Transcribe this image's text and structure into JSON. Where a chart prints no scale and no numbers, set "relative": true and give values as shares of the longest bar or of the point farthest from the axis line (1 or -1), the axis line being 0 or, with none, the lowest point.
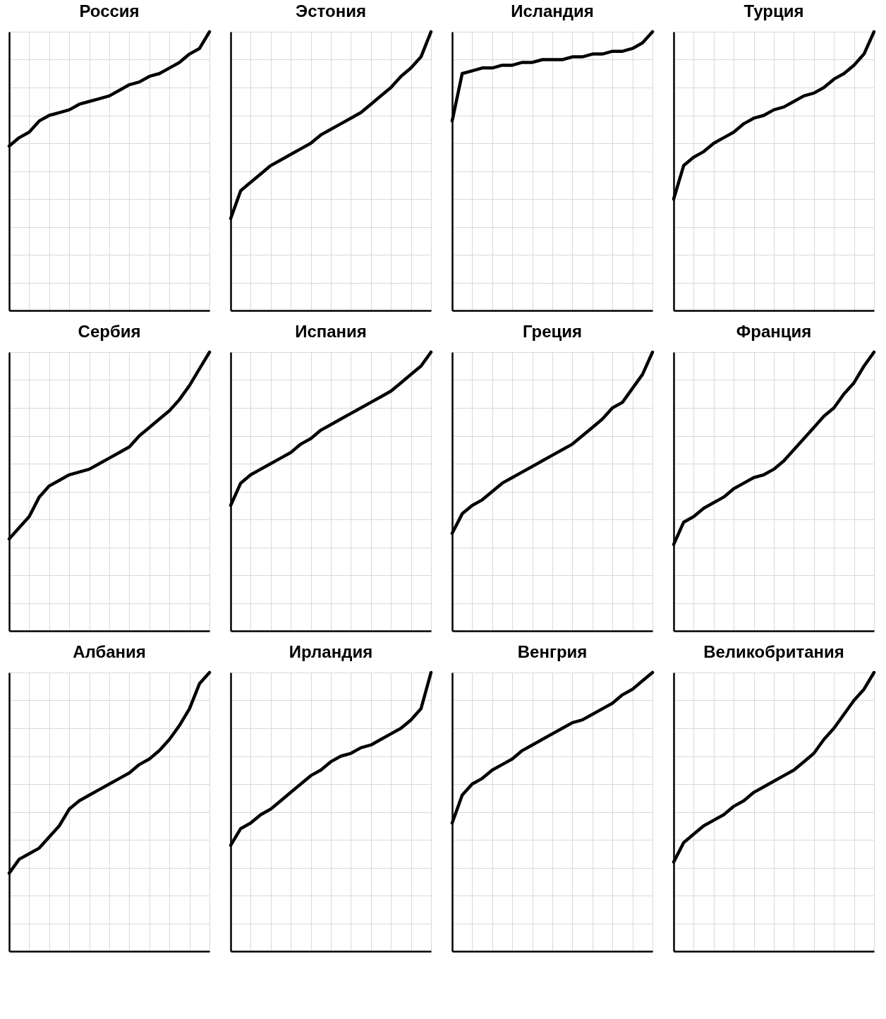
{
  "chart_data": [
    {
      "type": "line",
      "title": "Россия",
      "categories": [
        null,
        null,
        null,
        null,
        null,
        null,
        null,
        null,
        null,
        null,
        null,
        null,
        null,
        null,
        null,
        null,
        null,
        null,
        null,
        null,
        null
      ],
      "values": [
        0.59,
        0.62,
        0.64,
        0.68,
        0.7,
        0.71,
        0.72,
        0.74,
        0.75,
        0.76,
        0.77,
        0.79,
        0.81,
        0.82,
        0.84,
        0.85,
        0.87,
        0.89,
        0.92,
        0.94,
        1
      ],
      "color": "#000000",
      "relative": true,
      "grid": true,
      "tick_labels": false
    },
    {
      "type": "line",
      "title": "Эстония",
      "categories": [
        null,
        null,
        null,
        null,
        null,
        null,
        null,
        null,
        null,
        null,
        null,
        null,
        null,
        null,
        null,
        null,
        null,
        null,
        null,
        null,
        null
      ],
      "values": [
        0.33,
        0.43,
        0.46,
        0.49,
        0.52,
        0.54,
        0.56,
        0.58,
        0.6,
        0.63,
        0.65,
        0.67,
        0.69,
        0.71,
        0.74,
        0.77,
        0.8,
        0.84,
        0.87,
        0.91,
        1
      ],
      "color": "#000000",
      "relative": true,
      "grid": true,
      "tick_labels": false
    },
    {
      "type": "line",
      "title": "Исландия",
      "categories": [
        null,
        null,
        null,
        null,
        null,
        null,
        null,
        null,
        null,
        null,
        null,
        null,
        null,
        null,
        null,
        null,
        null,
        null,
        null,
        null,
        null
      ],
      "values": [
        0.68,
        0.85,
        0.86,
        0.87,
        0.87,
        0.88,
        0.88,
        0.89,
        0.89,
        0.9,
        0.9,
        0.9,
        0.91,
        0.91,
        0.92,
        0.92,
        0.93,
        0.93,
        0.94,
        0.96,
        1
      ],
      "color": "#000000",
      "relative": true,
      "grid": true,
      "tick_labels": false
    },
    {
      "type": "line",
      "title": "Турция",
      "categories": [
        null,
        null,
        null,
        null,
        null,
        null,
        null,
        null,
        null,
        null,
        null,
        null,
        null,
        null,
        null,
        null,
        null,
        null,
        null,
        null,
        null
      ],
      "values": [
        0.4,
        0.52,
        0.55,
        0.57,
        0.6,
        0.62,
        0.64,
        0.67,
        0.69,
        0.7,
        0.72,
        0.73,
        0.75,
        0.77,
        0.78,
        0.8,
        0.83,
        0.85,
        0.88,
        0.92,
        1
      ],
      "color": "#000000",
      "relative": true,
      "grid": true,
      "tick_labels": false
    },
    {
      "type": "line",
      "title": "Сербия",
      "categories": [
        null,
        null,
        null,
        null,
        null,
        null,
        null,
        null,
        null,
        null,
        null,
        null,
        null,
        null,
        null,
        null,
        null,
        null,
        null,
        null,
        null
      ],
      "values": [
        0.33,
        0.37,
        0.41,
        0.48,
        0.52,
        0.54,
        0.56,
        0.57,
        0.58,
        0.6,
        0.62,
        0.64,
        0.66,
        0.7,
        0.73,
        0.76,
        0.79,
        0.83,
        0.88,
        0.94,
        1
      ],
      "color": "#000000",
      "relative": true,
      "grid": true,
      "tick_labels": false
    },
    {
      "type": "line",
      "title": "Испания",
      "categories": [
        null,
        null,
        null,
        null,
        null,
        null,
        null,
        null,
        null,
        null,
        null,
        null,
        null,
        null,
        null,
        null,
        null,
        null,
        null,
        null,
        null
      ],
      "values": [
        0.45,
        0.53,
        0.56,
        0.58,
        0.6,
        0.62,
        0.64,
        0.67,
        0.69,
        0.72,
        0.74,
        0.76,
        0.78,
        0.8,
        0.82,
        0.84,
        0.86,
        0.89,
        0.92,
        0.95,
        1
      ],
      "color": "#000000",
      "relative": true,
      "grid": true,
      "tick_labels": false
    },
    {
      "type": "line",
      "title": "Греция",
      "categories": [
        null,
        null,
        null,
        null,
        null,
        null,
        null,
        null,
        null,
        null,
        null,
        null,
        null,
        null,
        null,
        null,
        null,
        null,
        null,
        null,
        null
      ],
      "values": [
        0.35,
        0.42,
        0.45,
        0.47,
        0.5,
        0.53,
        0.55,
        0.57,
        0.59,
        0.61,
        0.63,
        0.65,
        0.67,
        0.7,
        0.73,
        0.76,
        0.8,
        0.82,
        0.87,
        0.92,
        1
      ],
      "color": "#000000",
      "relative": true,
      "grid": true,
      "tick_labels": false
    },
    {
      "type": "line",
      "title": "Франция",
      "categories": [
        null,
        null,
        null,
        null,
        null,
        null,
        null,
        null,
        null,
        null,
        null,
        null,
        null,
        null,
        null,
        null,
        null,
        null,
        null,
        null,
        null
      ],
      "values": [
        0.31,
        0.39,
        0.41,
        0.44,
        0.46,
        0.48,
        0.51,
        0.53,
        0.55,
        0.56,
        0.58,
        0.61,
        0.65,
        0.69,
        0.73,
        0.77,
        0.8,
        0.85,
        0.89,
        0.95,
        1
      ],
      "color": "#000000",
      "relative": true,
      "grid": true,
      "tick_labels": false
    },
    {
      "type": "line",
      "title": "Албания",
      "categories": [
        null,
        null,
        null,
        null,
        null,
        null,
        null,
        null,
        null,
        null,
        null,
        null,
        null,
        null,
        null,
        null,
        null,
        null,
        null,
        null,
        null
      ],
      "values": [
        0.28,
        0.33,
        0.35,
        0.37,
        0.41,
        0.45,
        0.51,
        0.54,
        0.56,
        0.58,
        0.6,
        0.62,
        0.64,
        0.67,
        0.69,
        0.72,
        0.76,
        0.81,
        0.87,
        0.96,
        1
      ],
      "color": "#000000",
      "relative": true,
      "grid": true,
      "tick_labels": false
    },
    {
      "type": "line",
      "title": "Ирландия",
      "categories": [
        null,
        null,
        null,
        null,
        null,
        null,
        null,
        null,
        null,
        null,
        null,
        null,
        null,
        null,
        null,
        null,
        null,
        null,
        null,
        null,
        null
      ],
      "values": [
        0.38,
        0.44,
        0.46,
        0.49,
        0.51,
        0.54,
        0.57,
        0.6,
        0.63,
        0.65,
        0.68,
        0.7,
        0.71,
        0.73,
        0.74,
        0.76,
        0.78,
        0.8,
        0.83,
        0.87,
        1
      ],
      "color": "#000000",
      "relative": true,
      "grid": true,
      "tick_labels": false
    },
    {
      "type": "line",
      "title": "Венгрия",
      "categories": [
        null,
        null,
        null,
        null,
        null,
        null,
        null,
        null,
        null,
        null,
        null,
        null,
        null,
        null,
        null,
        null,
        null,
        null,
        null,
        null,
        null
      ],
      "values": [
        0.46,
        0.56,
        0.6,
        0.62,
        0.65,
        0.67,
        0.69,
        0.72,
        0.74,
        0.76,
        0.78,
        0.8,
        0.82,
        0.83,
        0.85,
        0.87,
        0.89,
        0.92,
        0.94,
        0.97,
        1
      ],
      "color": "#000000",
      "relative": true,
      "grid": true,
      "tick_labels": false
    },
    {
      "type": "line",
      "title": "Великобритания",
      "categories": [
        null,
        null,
        null,
        null,
        null,
        null,
        null,
        null,
        null,
        null,
        null,
        null,
        null,
        null,
        null,
        null,
        null,
        null,
        null,
        null,
        null
      ],
      "values": [
        0.32,
        0.39,
        0.42,
        0.45,
        0.47,
        0.49,
        0.52,
        0.54,
        0.57,
        0.59,
        0.61,
        0.63,
        0.65,
        0.68,
        0.71,
        0.76,
        0.8,
        0.85,
        0.9,
        0.94,
        1
      ],
      "color": "#000000",
      "relative": true,
      "grid": true,
      "tick_labels": false
    }
  ]
}
